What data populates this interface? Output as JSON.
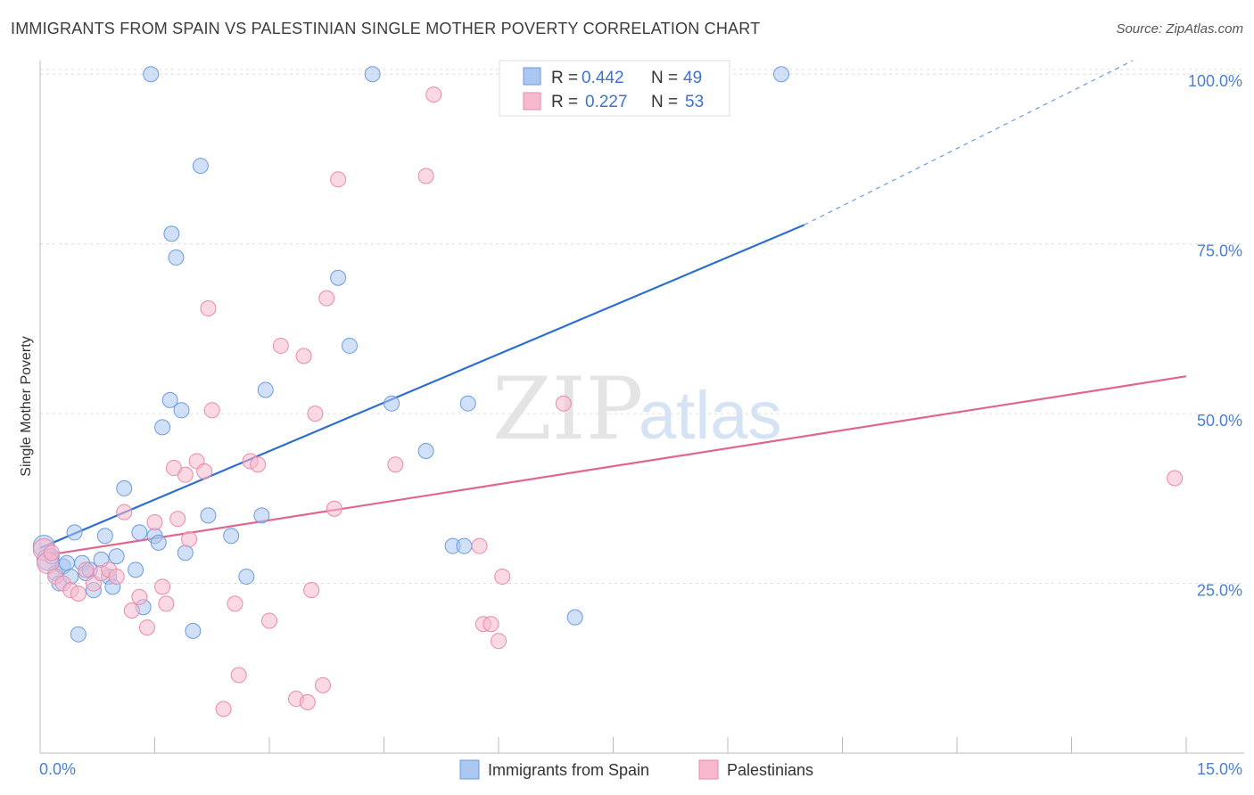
{
  "title": "IMMIGRANTS FROM SPAIN VS PALESTINIAN SINGLE MOTHER POVERTY CORRELATION CHART",
  "source": "Source: ZipAtlas.com",
  "watermark": {
    "zip": "ZIP",
    "atlas": "atlas"
  },
  "legend": {
    "r_label": "R =",
    "n_label": "N =",
    "rows": [
      {
        "r": "0.442",
        "n": "49"
      },
      {
        "r": "0.227",
        "n": "53"
      }
    ]
  },
  "colors": {
    "blue_fill": "#a9c7f0",
    "blue_stroke": "#6c9be0",
    "blue_line": "#2e6fce",
    "pink_fill": "#f6b9cd",
    "pink_stroke": "#e98aa8",
    "pink_line": "#e0668f",
    "grid": "#dddddd",
    "tick_text": "#4a7fd4"
  },
  "chart_data": {
    "type": "scatter",
    "title": "IMMIGRANTS FROM SPAIN VS PALESTINIAN SINGLE MOTHER POVERTY CORRELATION CHART",
    "xlabel": "",
    "ylabel": "Single Mother Poverty",
    "xlim": [
      0,
      15
    ],
    "ylim": [
      0,
      102
    ],
    "x_tick_labels": [
      "0.0%",
      "15.0%"
    ],
    "y_tick_labels": [
      "25.0%",
      "50.0%",
      "75.0%",
      "100.0%"
    ],
    "y_ticks": [
      25,
      50,
      75,
      100
    ],
    "grid": true,
    "legend_position": "top-center",
    "series": [
      {
        "name": "Immigrants from Spain",
        "r": 0.442,
        "n": 49,
        "trend": {
          "x0": 0,
          "y0": 30.2,
          "x1": 10.0,
          "y1": 77.8,
          "dashed_to": {
            "x": 14.3,
            "y": 102
          }
        },
        "points": [
          [
            0.05,
            30.5
          ],
          [
            0.1,
            28.5
          ],
          [
            0.15,
            29.0
          ],
          [
            0.2,
            26.5
          ],
          [
            0.25,
            25.0
          ],
          [
            0.3,
            27.5
          ],
          [
            0.35,
            28.0
          ],
          [
            0.4,
            26.0
          ],
          [
            0.45,
            32.5
          ],
          [
            0.5,
            17.5
          ],
          [
            0.55,
            28.0
          ],
          [
            0.6,
            26.5
          ],
          [
            0.65,
            27.0
          ],
          [
            0.7,
            24.0
          ],
          [
            0.8,
            28.5
          ],
          [
            0.85,
            32.0
          ],
          [
            0.9,
            26.0
          ],
          [
            0.95,
            24.5
          ],
          [
            1.0,
            29.0
          ],
          [
            1.1,
            39.0
          ],
          [
            1.25,
            27.0
          ],
          [
            1.3,
            32.5
          ],
          [
            1.35,
            21.5
          ],
          [
            1.5,
            32.0
          ],
          [
            1.55,
            31.0
          ],
          [
            1.6,
            48.0
          ],
          [
            1.7,
            52.0
          ],
          [
            1.72,
            76.5
          ],
          [
            1.78,
            73.0
          ],
          [
            1.85,
            50.5
          ],
          [
            1.9,
            29.5
          ],
          [
            2.0,
            18.0
          ],
          [
            2.1,
            86.5
          ],
          [
            2.2,
            35.0
          ],
          [
            2.5,
            32.0
          ],
          [
            2.7,
            26.0
          ],
          [
            2.9,
            35.0
          ],
          [
            2.95,
            53.5
          ],
          [
            3.9,
            70.0
          ],
          [
            4.05,
            60.0
          ],
          [
            4.6,
            51.5
          ],
          [
            5.05,
            44.5
          ],
          [
            5.4,
            30.5
          ],
          [
            5.55,
            30.5
          ],
          [
            5.6,
            51.5
          ],
          [
            7.0,
            20.0
          ],
          [
            1.45,
            100.0
          ],
          [
            4.35,
            100.0
          ],
          [
            9.7,
            100.0
          ]
        ]
      },
      {
        "name": "Palestinians",
        "r": 0.227,
        "n": 53,
        "trend": {
          "x0": 0,
          "y0": 29.0,
          "x1": 15.0,
          "y1": 55.5
        },
        "points": [
          [
            0.05,
            30.0
          ],
          [
            0.1,
            28.0
          ],
          [
            0.2,
            26.0
          ],
          [
            0.3,
            25.0
          ],
          [
            0.4,
            24.0
          ],
          [
            0.5,
            23.5
          ],
          [
            0.6,
            27.0
          ],
          [
            0.7,
            25.0
          ],
          [
            0.8,
            26.5
          ],
          [
            0.9,
            27.0
          ],
          [
            1.0,
            26.0
          ],
          [
            1.1,
            35.5
          ],
          [
            1.2,
            21.0
          ],
          [
            1.3,
            23.0
          ],
          [
            1.4,
            18.5
          ],
          [
            1.5,
            34.0
          ],
          [
            1.6,
            24.5
          ],
          [
            1.65,
            22.0
          ],
          [
            1.8,
            34.5
          ],
          [
            1.9,
            41.0
          ],
          [
            1.95,
            31.5
          ],
          [
            2.05,
            43.0
          ],
          [
            2.15,
            41.5
          ],
          [
            2.2,
            65.5
          ],
          [
            2.25,
            50.5
          ],
          [
            2.55,
            22.0
          ],
          [
            2.6,
            11.5
          ],
          [
            2.75,
            43.0
          ],
          [
            2.85,
            42.5
          ],
          [
            2.4,
            6.5
          ],
          [
            3.0,
            19.5
          ],
          [
            3.15,
            60.0
          ],
          [
            3.35,
            8.0
          ],
          [
            3.45,
            58.5
          ],
          [
            3.5,
            7.5
          ],
          [
            3.55,
            24.0
          ],
          [
            3.6,
            50.0
          ],
          [
            3.7,
            10.0
          ],
          [
            3.75,
            67.0
          ],
          [
            3.85,
            36.0
          ],
          [
            3.9,
            84.5
          ],
          [
            4.65,
            42.5
          ],
          [
            5.05,
            85.0
          ],
          [
            5.15,
            97.0
          ],
          [
            5.75,
            30.5
          ],
          [
            5.8,
            19.0
          ],
          [
            5.9,
            19.0
          ],
          [
            6.0,
            16.5
          ],
          [
            6.05,
            26.0
          ],
          [
            6.85,
            51.5
          ],
          [
            14.85,
            40.5
          ],
          [
            1.75,
            42.0
          ],
          [
            0.15,
            29.5
          ]
        ]
      }
    ]
  },
  "bottom_legend": [
    {
      "label": "Immigrants from Spain"
    },
    {
      "label": "Palestinians"
    }
  ]
}
